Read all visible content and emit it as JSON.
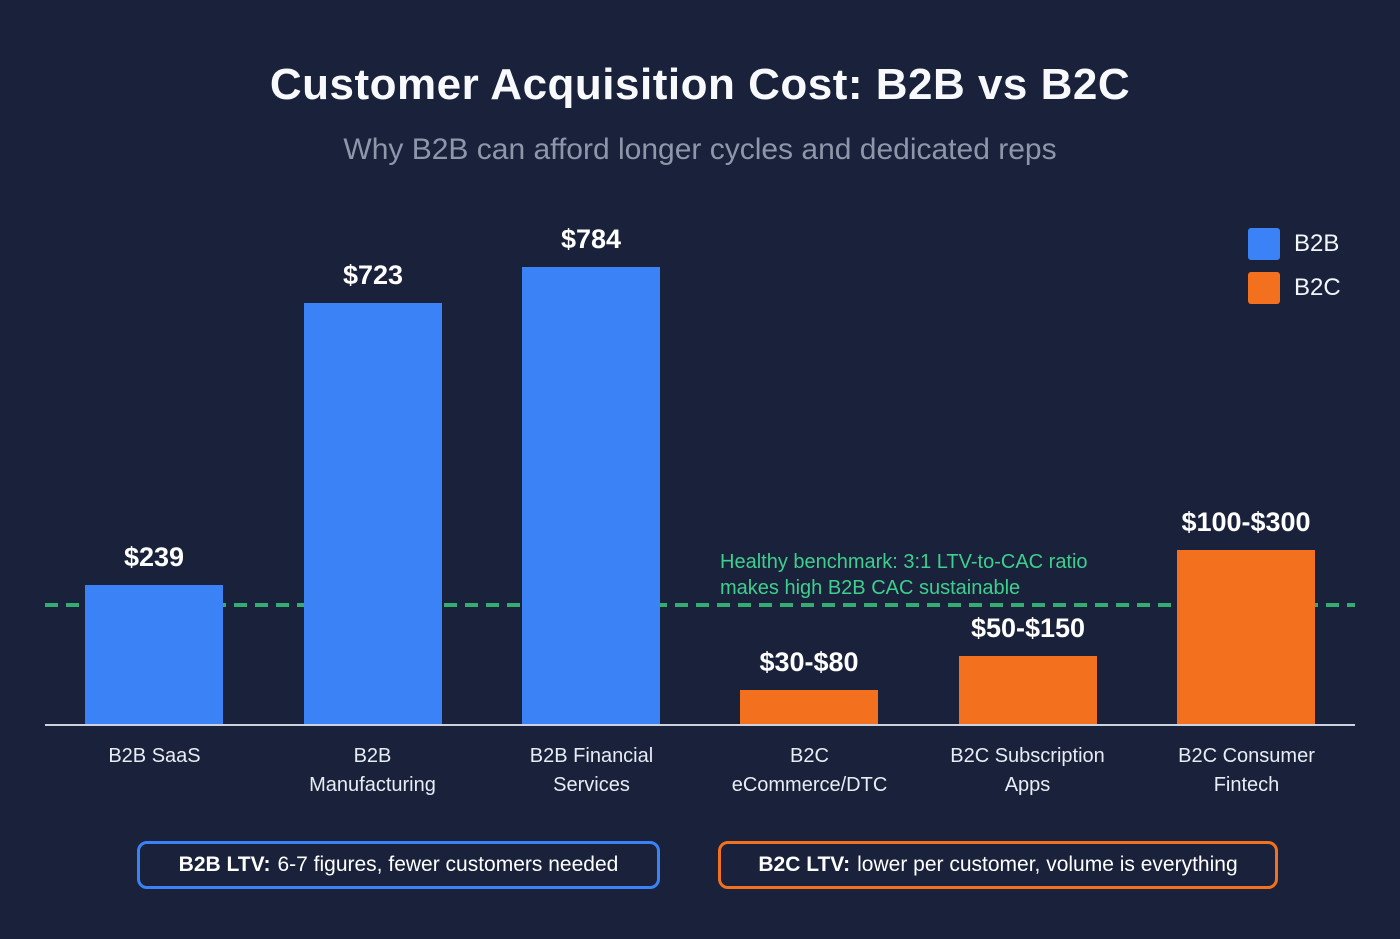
{
  "title": "Customer Acquisition Cost: B2B vs B2C",
  "subtitle": "Why B2B can afford longer cycles and dedicated reps",
  "colors": {
    "background": "#19223a",
    "b2b_blue": "#3b82f6",
    "b2c_orange": "#f3701f",
    "benchmark_text_green": "#3ecf8e",
    "benchmark_line_green": "#34ad72",
    "baseline_gray": "#ccd2de",
    "subtitle_gray": "#8d96aa",
    "title_white": "#f7f9fc"
  },
  "legend": {
    "position": "top-right",
    "items": [
      {
        "series": "B2B",
        "label": "B2B",
        "color": "#3b82f6"
      },
      {
        "series": "B2C",
        "label": "B2C",
        "color": "#f3701f"
      }
    ]
  },
  "annotation": {
    "line1": "Healthy benchmark: 3:1 LTV-to-CAC ratio",
    "line2": "makes high B2B CAC sustainable"
  },
  "callouts": {
    "b2b": {
      "bold": "B2B LTV:",
      "text": "6-7 figures, fewer customers needed",
      "border_color": "#3b82f6"
    },
    "b2c": {
      "bold": "B2C LTV:",
      "text": "lower per customer, volume is everything",
      "border_color": "#f3701f"
    }
  },
  "chart_data": {
    "type": "bar",
    "title": "Customer Acquisition Cost: B2B vs B2C",
    "subtitle": "Why B2B can afford longer cycles and dedicated reps",
    "xlabel": "",
    "ylabel": "",
    "ylim": [
      0,
      900
    ],
    "grid": false,
    "legend_position": "top-right",
    "categories": [
      "B2B SaaS",
      "B2B Manufacturing",
      "B2B Financial Services",
      "B2C eCommerce/DTC",
      "B2C Subscription Apps",
      "B2C Consumer Fintech"
    ],
    "bars": [
      {
        "category": "B2B SaaS",
        "category_lines": [
          "B2B SaaS"
        ],
        "series": "B2B",
        "value_label": "$239",
        "value": 239,
        "plot_value": 239
      },
      {
        "category": "B2B Manufacturing",
        "category_lines": [
          "B2B",
          "Manufacturing"
        ],
        "series": "B2B",
        "value_label": "$723",
        "value": 723,
        "plot_value": 723
      },
      {
        "category": "B2B Financial Services",
        "category_lines": [
          "B2B Financial",
          "Services"
        ],
        "series": "B2B",
        "value_label": "$784",
        "value": 784,
        "plot_value": 784
      },
      {
        "category": "B2C eCommerce/DTC",
        "category_lines": [
          "B2C",
          "eCommerce/DTC"
        ],
        "series": "B2C",
        "value_label": "$30-$80",
        "value_range": [
          30,
          80
        ],
        "plot_value": 58
      },
      {
        "category": "B2C Subscription Apps",
        "category_lines": [
          "B2C Subscription",
          "Apps"
        ],
        "series": "B2C",
        "value_label": "$50-$150",
        "value_range": [
          50,
          150
        ],
        "plot_value": 117
      },
      {
        "category": "B2C Consumer Fintech",
        "category_lines": [
          "B2C Consumer",
          "Fintech"
        ],
        "series": "B2C",
        "value_label": "$100-$300",
        "value_range": [
          100,
          300
        ],
        "plot_value": 299
      }
    ],
    "benchmark": {
      "value": 200,
      "style": "dashed",
      "color": "#34ad72",
      "annotation": "Healthy benchmark: 3:1 LTV-to-CAC ratio makes high B2B CAC sustainable"
    }
  }
}
